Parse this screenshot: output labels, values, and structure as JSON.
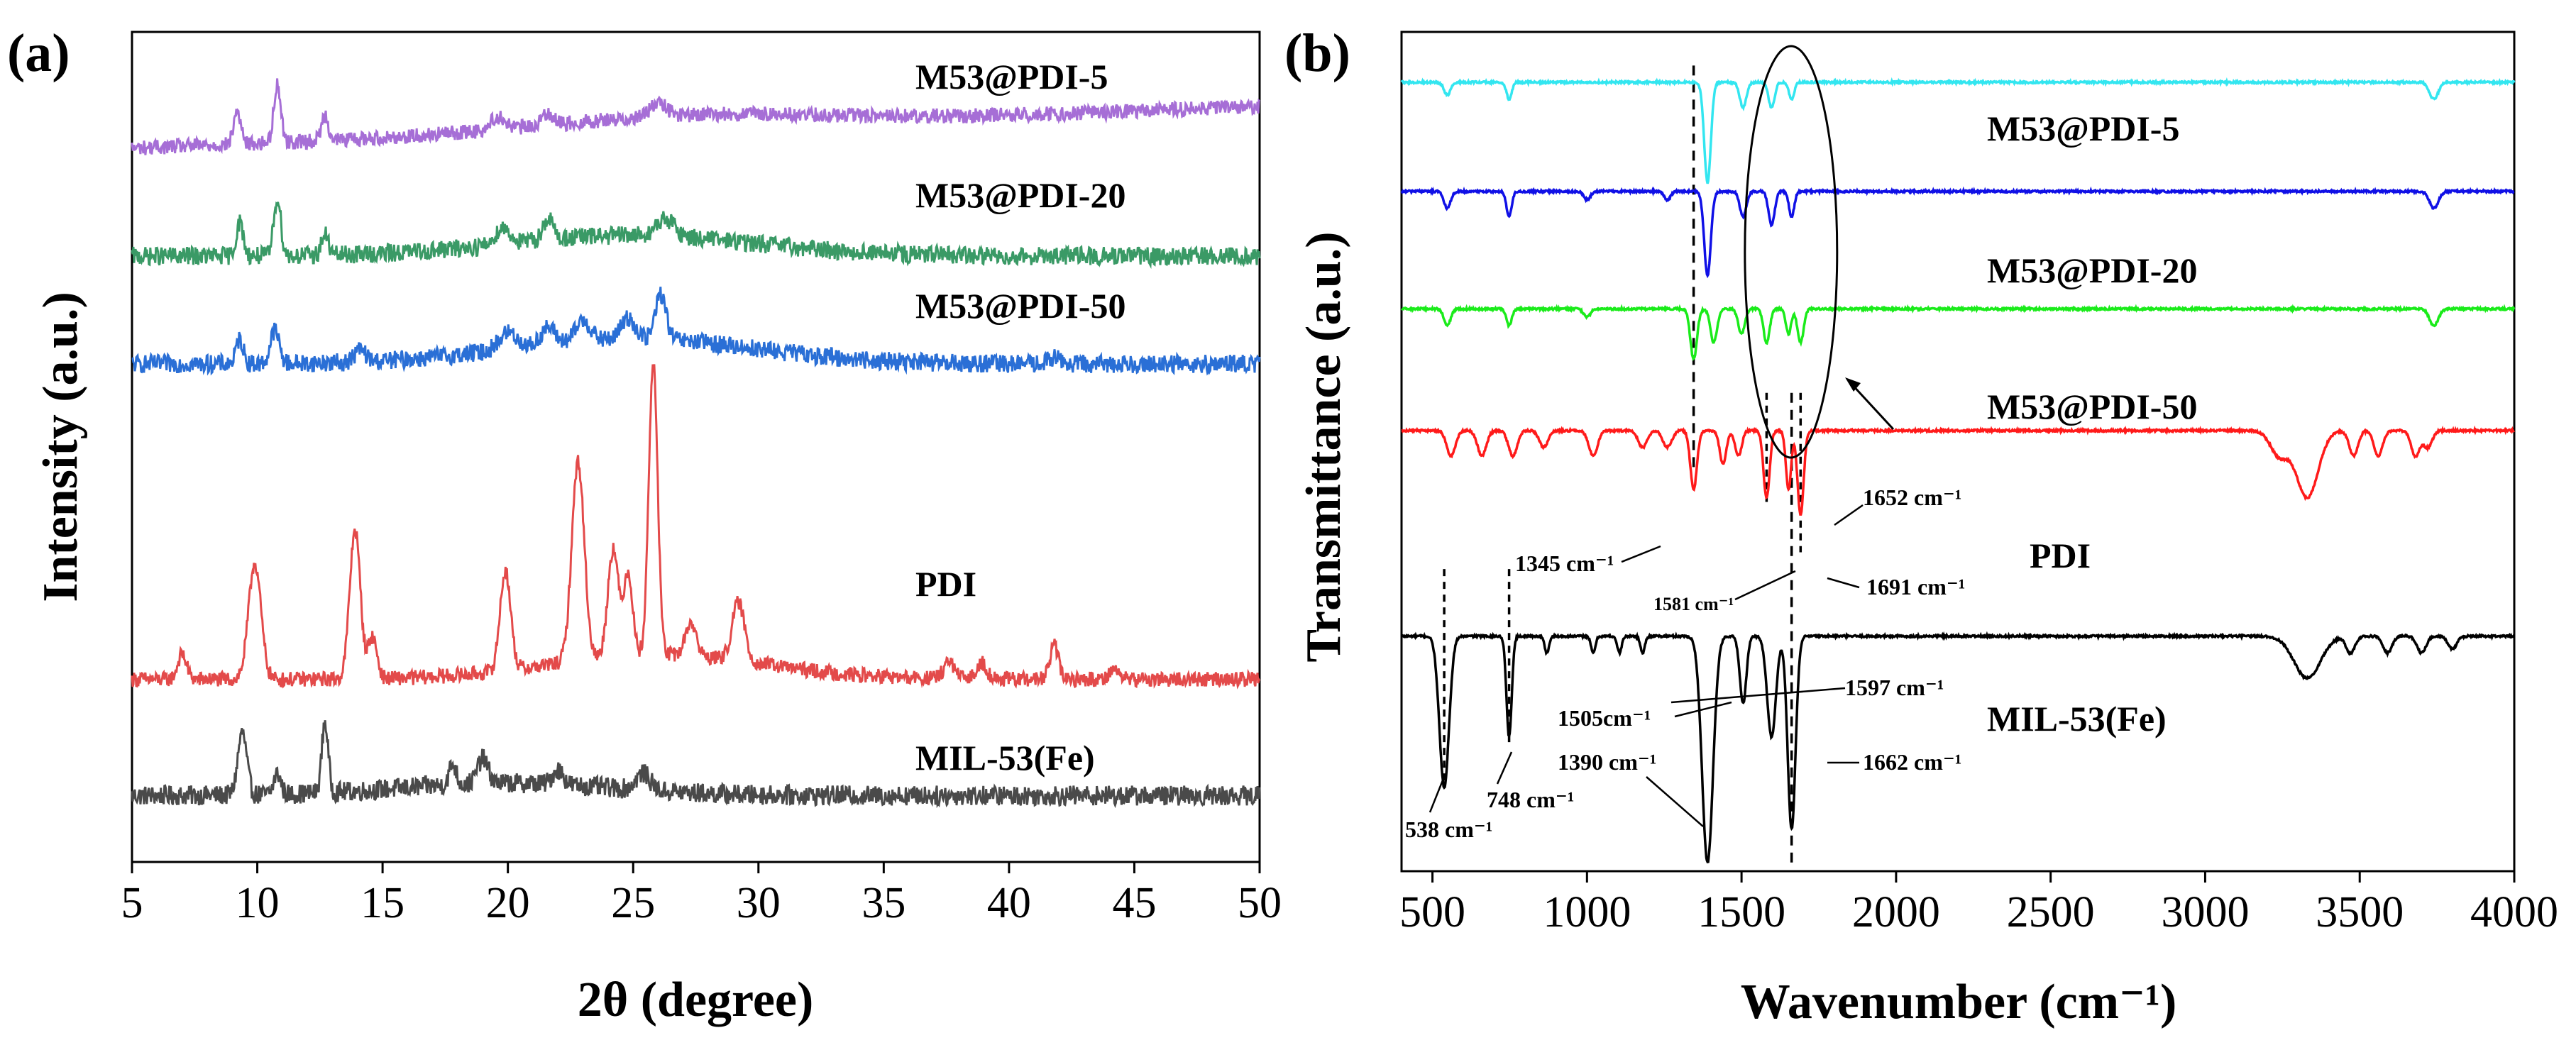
{
  "chart_data": [
    {
      "type": "line",
      "panel_label": "(a)",
      "title": "",
      "xlabel": "2θ (degree)",
      "ylabel": "Intensity (a.u.)",
      "xlim": [
        5,
        50
      ],
      "xticks": [
        5,
        10,
        15,
        20,
        25,
        30,
        35,
        40,
        45,
        50
      ],
      "xtick_labels": [
        "5",
        "10",
        "15",
        "20",
        "25",
        "30",
        "35",
        "40",
        "45",
        "50"
      ],
      "y_units": "offset intensity (a.u., 0 = bottom of frame, 100 = top)",
      "ylim": [
        0,
        100
      ],
      "grid": false,
      "series": [
        {
          "name": "MIL-53(Fe)",
          "color": "#4a4a4a",
          "baseline": 8,
          "noise": 1.2,
          "peaks": [
            [
              9.4,
              7.5,
              0.25
            ],
            [
              10.8,
              2.5,
              0.2
            ],
            [
              12.7,
              8.5,
              0.18
            ],
            [
              17.8,
              2.5,
              0.2
            ],
            [
              19.0,
              3.0,
              0.3
            ],
            [
              22.0,
              1.8,
              0.3
            ],
            [
              25.4,
              2.0,
              0.4
            ]
          ],
          "hump": [
            [
              20,
              1.5,
              6
            ]
          ],
          "label": "MIL-53(Fe)"
        },
        {
          "name": "PDI",
          "color": "#e34a4a",
          "baseline": 22,
          "noise": 0.9,
          "peaks": [
            [
              7.0,
              3.0,
              0.25
            ],
            [
              9.9,
              14.0,
              0.35
            ],
            [
              13.9,
              18.0,
              0.3
            ],
            [
              14.6,
              5.0,
              0.25
            ],
            [
              19.9,
              12.0,
              0.3
            ],
            [
              22.8,
              24.0,
              0.35
            ],
            [
              24.2,
              13.0,
              0.3
            ],
            [
              24.8,
              10.0,
              0.25
            ],
            [
              25.8,
              35.0,
              0.25
            ],
            [
              27.3,
              4.0,
              0.3
            ],
            [
              29.2,
              7.0,
              0.35
            ],
            [
              37.6,
              2.0,
              0.3
            ],
            [
              38.9,
              2.0,
              0.3
            ],
            [
              41.8,
              4.0,
              0.25
            ],
            [
              44.2,
              1.2,
              0.3
            ]
          ],
          "hump": [
            [
              26,
              3.0,
              6
            ]
          ],
          "label": "PDI"
        },
        {
          "name": "M53@PDI-50",
          "color": "#2a6fd6",
          "baseline": 60,
          "noise": 1.1,
          "peaks": [
            [
              9.3,
              3.0,
              0.2
            ],
            [
              10.7,
              4.0,
              0.25
            ],
            [
              14.1,
              1.5,
              0.3
            ],
            [
              20.0,
              2.0,
              0.5
            ],
            [
              21.6,
              2.0,
              0.4
            ],
            [
              23.0,
              2.5,
              0.4
            ],
            [
              24.8,
              2.5,
              0.4
            ],
            [
              26.1,
              5.5,
              0.3
            ],
            [
              41.8,
              0.8,
              0.3
            ]
          ],
          "hump": [
            [
              25,
              3.0,
              7
            ]
          ],
          "label": "M53@PDI-50"
        },
        {
          "name": "M53@PDI-20",
          "color": "#3a9a66",
          "baseline": 73,
          "noise": 1.1,
          "peaks": [
            [
              9.3,
              4.0,
              0.2
            ],
            [
              10.8,
              7.0,
              0.2
            ],
            [
              12.7,
              2.5,
              0.2
            ],
            [
              19.8,
              2.0,
              0.4
            ],
            [
              21.6,
              2.5,
              0.3
            ],
            [
              26.3,
              2.0,
              0.5
            ]
          ],
          "hump": [
            [
              25,
              2.5,
              7
            ]
          ],
          "label": "M53@PDI-20"
        },
        {
          "name": "M53@PDI-5",
          "color": "#a66ed6",
          "baseline": 86,
          "noise": 0.9,
          "peaks": [
            [
              9.2,
              4.0,
              0.2
            ],
            [
              10.8,
              7.0,
              0.2
            ],
            [
              12.7,
              3.0,
              0.2
            ],
            [
              19.6,
              1.5,
              0.4
            ],
            [
              21.6,
              1.5,
              0.3
            ],
            [
              26.0,
              1.5,
              0.5
            ]
          ],
          "hump": [
            [
              27,
              1.5,
              8
            ]
          ],
          "rise": 5.0,
          "label": "M53@PDI-5"
        }
      ]
    },
    {
      "type": "line",
      "panel_label": "(b)",
      "title": "",
      "xlabel": "Wavenumber (cm⁻¹)",
      "ylabel": "Transmittance (a.u.)",
      "xlim": [
        400,
        4000
      ],
      "xticks": [
        500,
        1000,
        1500,
        2000,
        2500,
        3000,
        3500,
        4000
      ],
      "xtick_labels": [
        "500",
        "1000",
        "1500",
        "2000",
        "2500",
        "3000",
        "3500",
        "4000"
      ],
      "y_units": "offset transmittance (a.u., 0 = bottom of frame, 100 = top)",
      "ylim": [
        0,
        100
      ],
      "grid": false,
      "series": [
        {
          "name": "MIL-53(Fe)",
          "color": "#000000",
          "baseline": 28,
          "bands": [
            [
              538,
              18,
              22
            ],
            [
              748,
              12,
              12
            ],
            [
              870,
              2,
              10
            ],
            [
              1020,
              2,
              10
            ],
            [
              1105,
              2,
              10
            ],
            [
              1180,
              2,
              10
            ],
            [
              1390,
              27,
              25
            ],
            [
              1505,
              8,
              15
            ],
            [
              1597,
              12,
              20
            ],
            [
              1662,
              23,
              18
            ],
            [
              3330,
              5,
              60
            ],
            [
              3470,
              2,
              20
            ],
            [
              3590,
              2,
              20
            ],
            [
              3700,
              2,
              20
            ],
            [
              3800,
              1.5,
              20
            ]
          ],
          "label": "MIL-53(Fe)"
        },
        {
          "name": "PDI",
          "color": "#ff1a1a",
          "baseline": 52.5,
          "bands": [
            [
              560,
              3,
              20
            ],
            [
              660,
              3,
              20
            ],
            [
              760,
              3,
              20
            ],
            [
              860,
              2,
              20
            ],
            [
              1020,
              3,
              20
            ],
            [
              1180,
              2,
              20
            ],
            [
              1260,
              2,
              20
            ],
            [
              1345,
              7,
              15
            ],
            [
              1440,
              4,
              15
            ],
            [
              1490,
              3,
              15
            ],
            [
              1581,
              8,
              14
            ],
            [
              1652,
              7,
              12
            ],
            [
              1691,
              10,
              14
            ],
            [
              3240,
              3,
              40
            ],
            [
              3330,
              8,
              50
            ],
            [
              3480,
              3,
              20
            ],
            [
              3560,
              3,
              20
            ],
            [
              3680,
              3,
              20
            ],
            [
              3720,
              2,
              20
            ]
          ],
          "label": "PDI"
        },
        {
          "name": "M53@PDI-50",
          "color": "#1aeb1a",
          "baseline": 67,
          "bands": [
            [
              548,
              2,
              15
            ],
            [
              748,
              2,
              12
            ],
            [
              1000,
              1,
              15
            ],
            [
              1345,
              6,
              15
            ],
            [
              1410,
              4,
              15
            ],
            [
              1500,
              3,
              15
            ],
            [
              1581,
              4,
              14
            ],
            [
              1652,
              3,
              12
            ],
            [
              1691,
              4,
              14
            ],
            [
              3740,
              2,
              20
            ]
          ],
          "label": "M53@PDI-50"
        },
        {
          "name": "M53@PDI-20",
          "color": "#1010e6",
          "baseline": 81,
          "bands": [
            [
              548,
              2,
              15
            ],
            [
              748,
              3,
              12
            ],
            [
              1000,
              1,
              15
            ],
            [
              1260,
              1,
              15
            ],
            [
              1390,
              10,
              15
            ],
            [
              1505,
              3,
              15
            ],
            [
              1597,
              4,
              14
            ],
            [
              1662,
              3,
              12
            ],
            [
              3740,
              2,
              20
            ]
          ],
          "label": "M53@PDI-20"
        },
        {
          "name": "M53@PDI-5",
          "color": "#33e6f0",
          "baseline": 94,
          "bands": [
            [
              548,
              1.5,
              15
            ],
            [
              748,
              2,
              12
            ],
            [
              1390,
              12,
              15
            ],
            [
              1505,
              3,
              15
            ],
            [
              1597,
              3,
              14
            ],
            [
              1662,
              2,
              12
            ],
            [
              3740,
              2,
              20
            ]
          ],
          "label": "M53@PDI-5"
        }
      ],
      "annotations": {
        "mil_538": "538 cm⁻¹",
        "mil_748": "748 cm⁻¹",
        "mil_1390": "1390 cm⁻¹",
        "mil_1505": "1505cm⁻¹",
        "mil_1597": "1597 cm⁻¹",
        "mil_1662": "1662 cm⁻¹",
        "pdi_1345": "1345 cm⁻¹",
        "pdi_1581": "1581 cm⁻¹",
        "pdi_1652": "1652 cm⁻¹",
        "pdi_1691": "1691 cm⁻¹"
      },
      "reference_lines_cm": [
        1345,
        1581,
        1652,
        1691
      ],
      "highlight_ellipse_center_cm": 1660
    }
  ]
}
